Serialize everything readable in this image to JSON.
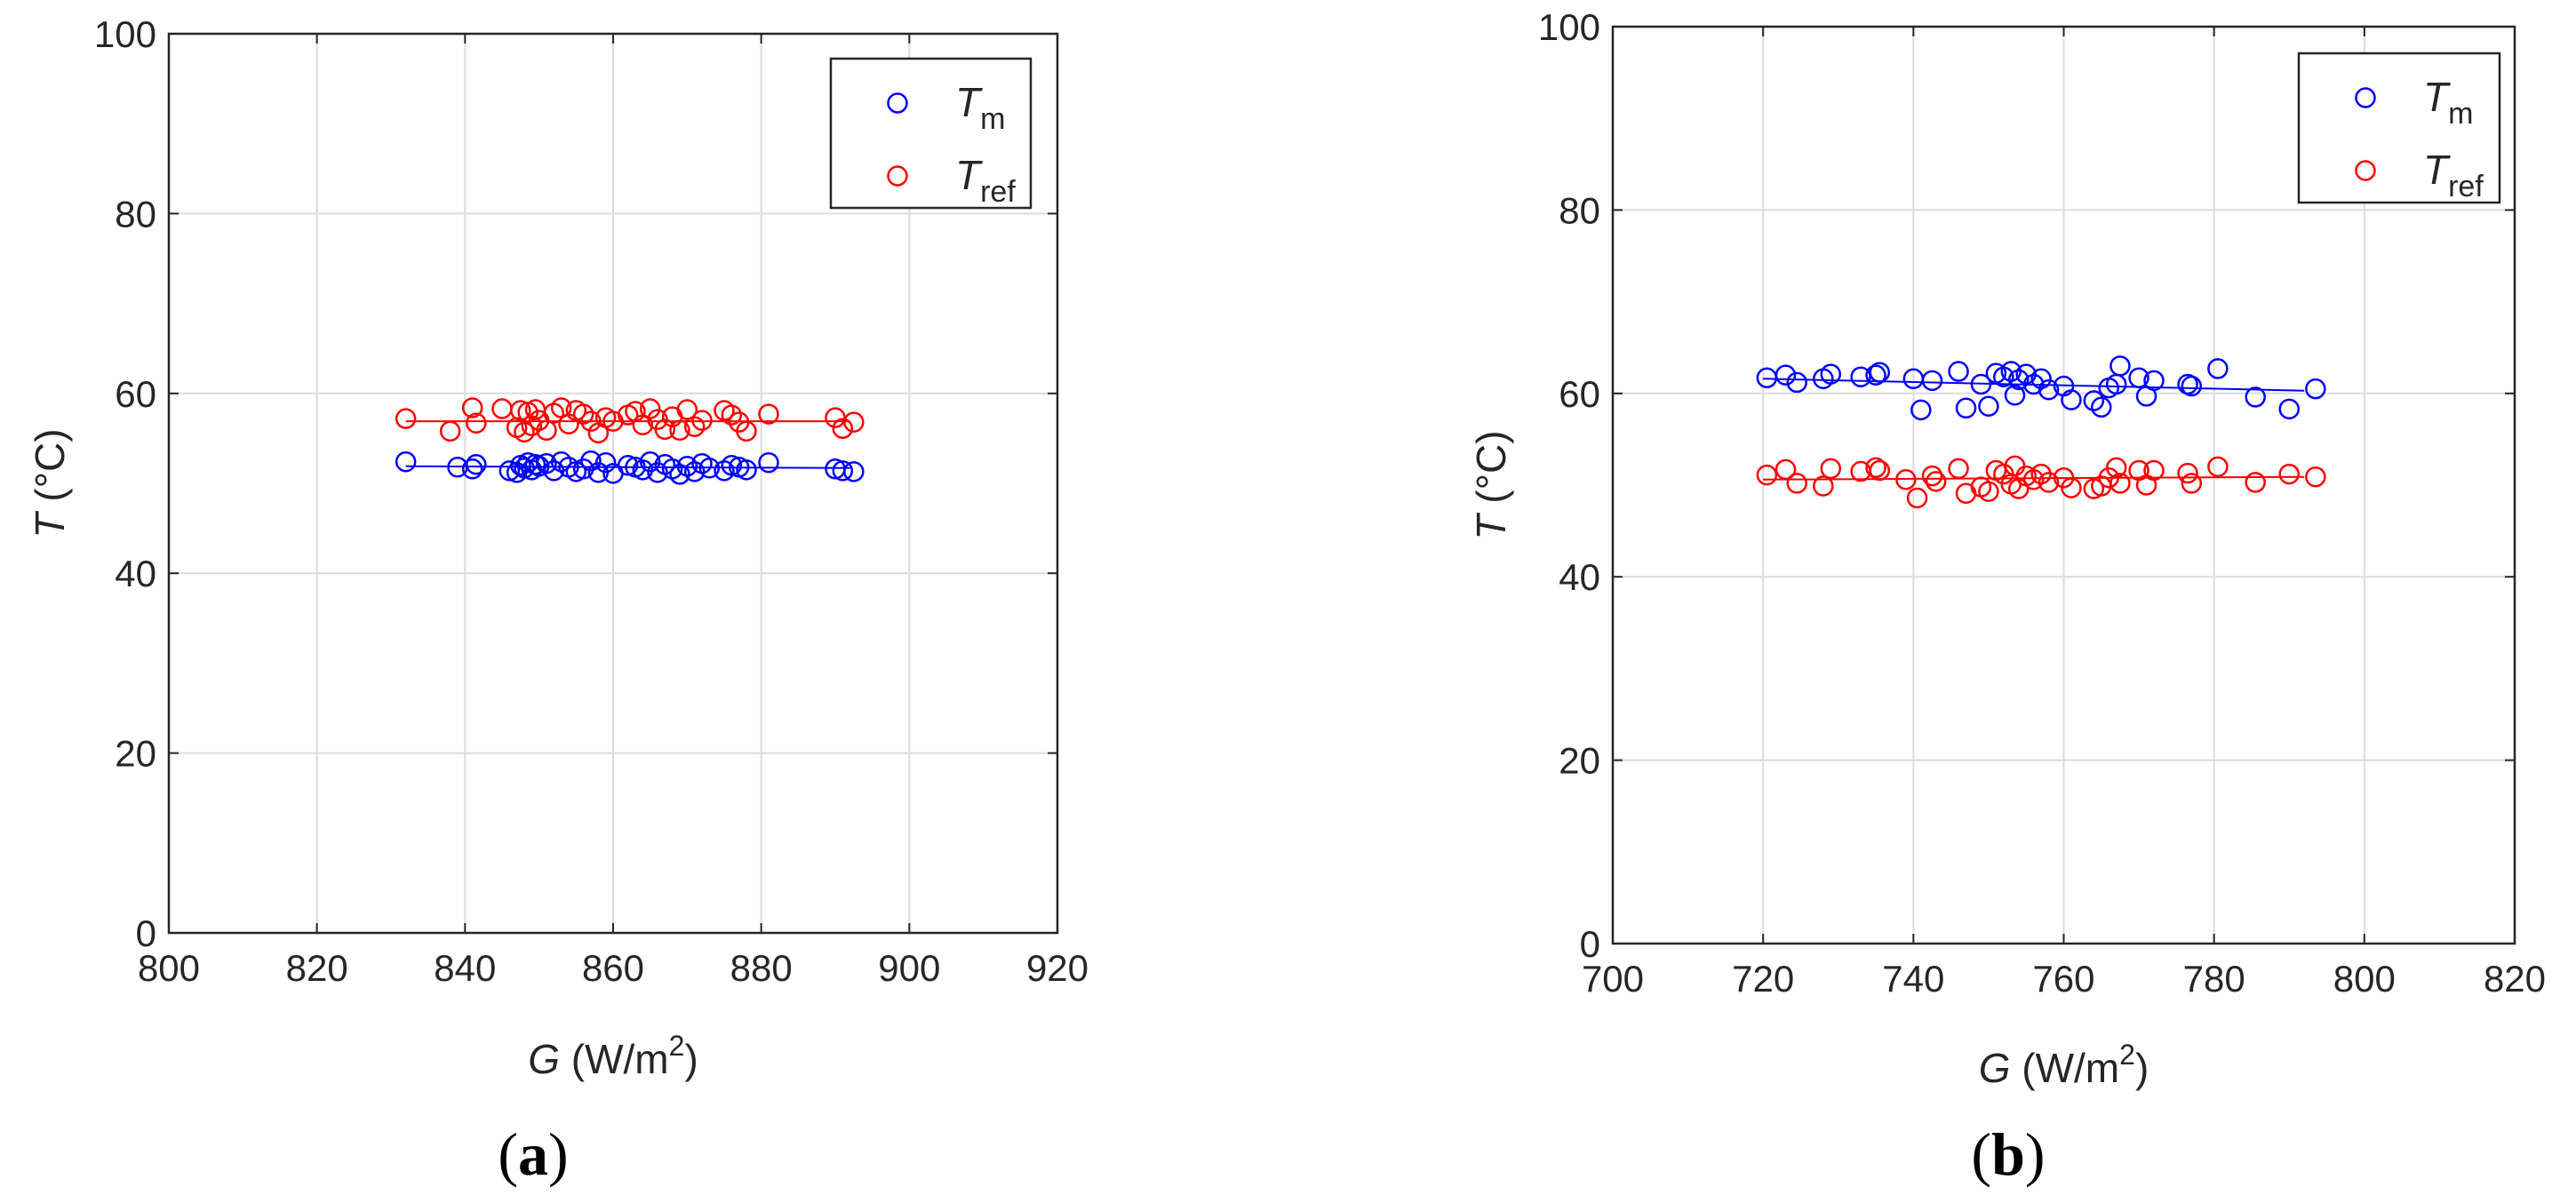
{
  "panels": [
    {
      "label": "(a)",
      "label_letter": "a"
    },
    {
      "label": "(b)",
      "label_letter": "b"
    }
  ],
  "chart_data": [
    {
      "type": "scatter",
      "title": "",
      "xlabel": "G (W/m2)",
      "xlabel_var": "G",
      "xlabel_unit_prefix": " (W/m",
      "xlabel_unit_sup": "2",
      "xlabel_unit_suffix": ")",
      "ylabel": "T (°C)",
      "ylabel_var": "T",
      "ylabel_unit": " (°C)",
      "xlim": [
        800,
        920
      ],
      "ylim": [
        0,
        100
      ],
      "xticks": [
        800,
        820,
        840,
        860,
        880,
        900,
        920
      ],
      "yticks": [
        0,
        20,
        40,
        60,
        80,
        100
      ],
      "grid": true,
      "legend_position": "top-right",
      "series": [
        {
          "name": "Tm",
          "legend_main": "T",
          "legend_sub": "m",
          "color": "#0000ff",
          "fit_line": {
            "x": [
              832,
              892
            ],
            "y": [
              51.9,
              51.7
            ]
          },
          "x": [
            832,
            839,
            841,
            841.5,
            846,
            847,
            847.5,
            848,
            848.5,
            849,
            849.5,
            850,
            851,
            852,
            853,
            854,
            855,
            856,
            857,
            858,
            859,
            860,
            862,
            863,
            864,
            865,
            866,
            867,
            868,
            869,
            870,
            871,
            872,
            873,
            875,
            876,
            877,
            878,
            881,
            890,
            891,
            892.5
          ],
          "y": [
            52.4,
            51.8,
            51.6,
            52.1,
            51.4,
            51.2,
            52.0,
            51.7,
            52.3,
            51.5,
            52.1,
            51.9,
            52.2,
            51.4,
            52.4,
            51.8,
            51.3,
            51.6,
            52.5,
            51.2,
            52.3,
            51.1,
            52.0,
            51.8,
            51.5,
            52.4,
            51.2,
            52.1,
            51.6,
            51.0,
            51.9,
            51.3,
            52.2,
            51.7,
            51.4,
            52.0,
            51.8,
            51.5,
            52.3,
            51.6,
            51.4,
            51.3
          ]
        },
        {
          "name": "Tref",
          "legend_main": "T",
          "legend_sub": "ref",
          "color": "#ff0000",
          "fit_line": {
            "x": [
              832,
              892
            ],
            "y": [
              56.9,
              56.9
            ]
          },
          "x": [
            832,
            838,
            841,
            841.5,
            845,
            847,
            847.5,
            848,
            848.5,
            849,
            849.5,
            850,
            851,
            852,
            853,
            854,
            855,
            856,
            857,
            858,
            859,
            860,
            862,
            863,
            864,
            865,
            866,
            867,
            868,
            869,
            870,
            871,
            872,
            875,
            876,
            877,
            878,
            881,
            890,
            891,
            892.5
          ],
          "y": [
            57.2,
            55.8,
            58.4,
            56.7,
            58.3,
            56.2,
            58.1,
            55.7,
            57.9,
            56.4,
            58.2,
            57.0,
            55.9,
            57.8,
            58.4,
            56.6,
            58.1,
            57.7,
            56.9,
            55.6,
            57.3,
            56.9,
            57.6,
            58.0,
            56.5,
            58.3,
            57.1,
            56.0,
            57.4,
            55.9,
            58.2,
            56.3,
            57.0,
            58.1,
            57.6,
            56.8,
            55.8,
            57.7,
            57.3,
            56.1,
            56.8
          ]
        }
      ]
    },
    {
      "type": "scatter",
      "title": "",
      "xlabel": "G (W/m2)",
      "xlabel_var": "G",
      "xlabel_unit_prefix": " (W/m",
      "xlabel_unit_sup": "2",
      "xlabel_unit_suffix": ")",
      "ylabel": "T (°C)",
      "ylabel_var": "T",
      "ylabel_unit": " (°C)",
      "xlim": [
        700,
        820
      ],
      "ylim": [
        0,
        100
      ],
      "xticks": [
        700,
        720,
        740,
        760,
        780,
        800,
        820
      ],
      "yticks": [
        0,
        20,
        40,
        60,
        80,
        100
      ],
      "grid": true,
      "legend_position": "top-right",
      "series": [
        {
          "name": "Tm",
          "legend_main": "T",
          "legend_sub": "m",
          "color": "#0000ff",
          "fit_line": {
            "x": [
              720,
              792
            ],
            "y": [
              61.6,
              60.3
            ]
          },
          "x": [
            720.5,
            723,
            724.5,
            728,
            729,
            733,
            735,
            735.5,
            740,
            741,
            742.5,
            746,
            747,
            749,
            750,
            751,
            752,
            753,
            753.5,
            754,
            755,
            756,
            757,
            758,
            760,
            761,
            764,
            765,
            766,
            767,
            767.5,
            770,
            771,
            772,
            776.5,
            777,
            780.5,
            785.5,
            790,
            793.5
          ],
          "y": [
            61.7,
            62.0,
            61.2,
            61.6,
            62.1,
            61.8,
            62.0,
            62.3,
            61.6,
            58.2,
            61.4,
            62.4,
            58.4,
            61.0,
            58.6,
            62.2,
            61.8,
            62.4,
            59.8,
            61.5,
            62.1,
            61.0,
            61.6,
            60.4,
            60.8,
            59.3,
            59.2,
            58.5,
            60.6,
            61.0,
            63.0,
            61.7,
            59.7,
            61.4,
            61.0,
            60.8,
            62.7,
            59.6,
            58.3,
            60.5
          ]
        },
        {
          "name": "Tref",
          "legend_main": "T",
          "legend_sub": "ref",
          "color": "#ff0000",
          "fit_line": {
            "x": [
              720,
              792
            ],
            "y": [
              50.6,
              50.9
            ]
          },
          "x": [
            720.5,
            723,
            724.5,
            728,
            729,
            733,
            735,
            735.5,
            739,
            740.5,
            742.5,
            743,
            746,
            747,
            749,
            750,
            751,
            752,
            753,
            753.5,
            754,
            755,
            756,
            757,
            758,
            760,
            761,
            764,
            765,
            766,
            767,
            767.5,
            770,
            771,
            772,
            776.5,
            777,
            780.5,
            785.5,
            790,
            793.5
          ],
          "y": [
            51.1,
            51.7,
            50.2,
            49.9,
            51.8,
            51.5,
            51.9,
            51.6,
            50.6,
            48.6,
            51.0,
            50.4,
            51.8,
            49.1,
            49.8,
            49.3,
            51.6,
            51.2,
            50.1,
            52.1,
            49.6,
            51.0,
            50.6,
            51.2,
            50.3,
            50.8,
            49.7,
            49.6,
            49.9,
            50.8,
            51.9,
            50.2,
            51.6,
            50.0,
            51.6,
            51.3,
            50.2,
            52.0,
            50.3,
            51.2,
            50.9
          ]
        }
      ]
    }
  ]
}
